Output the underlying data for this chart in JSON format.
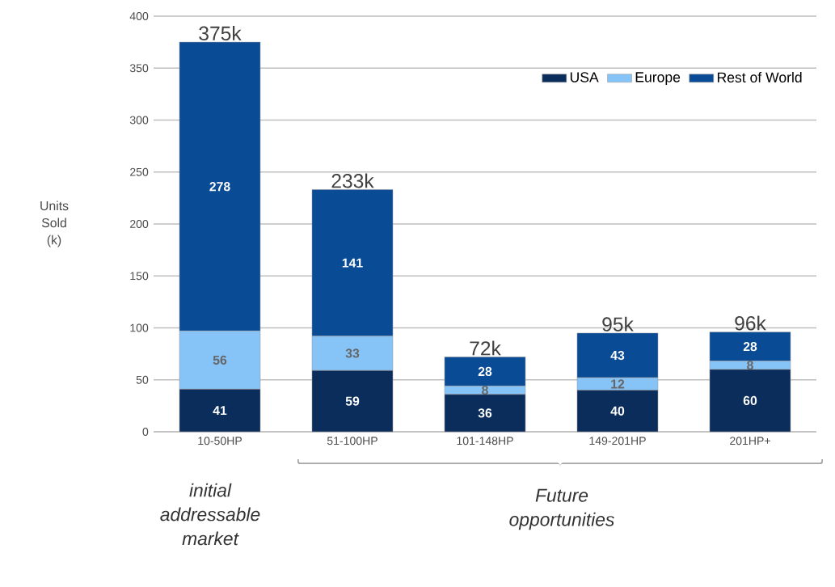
{
  "chart_data": {
    "type": "bar",
    "stacked": true,
    "categories": [
      "10-50HP",
      "51-100HP",
      "101-148HP",
      "149-201HP",
      "201HP+"
    ],
    "series": [
      {
        "name": "USA",
        "color": "#0b2d5c",
        "values": [
          41,
          59,
          36,
          40,
          60
        ]
      },
      {
        "name": "Europe",
        "color": "#86c3f7",
        "values": [
          56,
          33,
          8,
          12,
          8
        ]
      },
      {
        "name": "Rest of World",
        "color": "#0a4b96",
        "values": [
          278,
          141,
          28,
          43,
          28
        ]
      }
    ],
    "totals": [
      "375k",
      "233k",
      "72k",
      "95k",
      "96k"
    ],
    "data_labels": true,
    "ylabel": "Units Sold (k)",
    "ylim": [
      0,
      400
    ],
    "yticks": [
      0,
      50,
      100,
      150,
      200,
      250,
      300,
      350,
      400
    ],
    "grid": "y",
    "legend": "top right",
    "annotations": [
      "initial addressable market",
      "Future opportunities"
    ]
  }
}
